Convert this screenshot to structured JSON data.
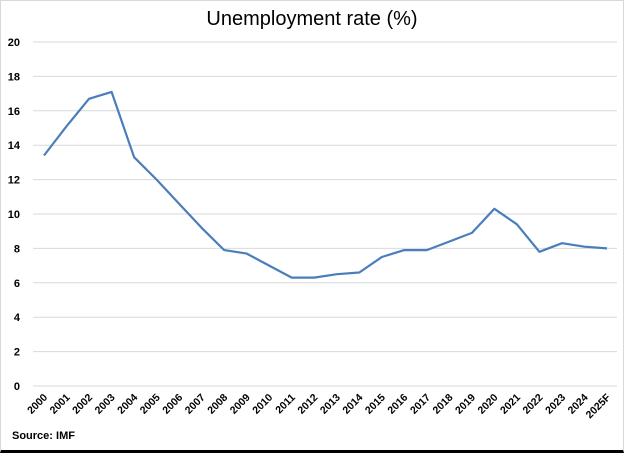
{
  "chart_data": {
    "type": "line",
    "title": "Unemployment rate (%)",
    "xlabel": "",
    "ylabel": "",
    "ylim": [
      0,
      20
    ],
    "yticks": [
      0,
      2,
      4,
      6,
      8,
      10,
      12,
      14,
      16,
      18,
      20
    ],
    "grid": true,
    "legend": null,
    "categories": [
      "2000",
      "2001",
      "2002",
      "2003",
      "2004",
      "2005",
      "2006",
      "2007",
      "2008",
      "2009",
      "2010",
      "2011",
      "2012",
      "2013",
      "2014",
      "2015",
      "2016",
      "2017",
      "2018",
      "2019",
      "2020",
      "2021",
      "2022",
      "2023",
      "2024",
      "2025F"
    ],
    "series": [
      {
        "name": "Unemployment rate",
        "color": "#4a7ebb",
        "values": [
          13.4,
          15.1,
          16.7,
          17.1,
          13.3,
          12.0,
          10.6,
          9.2,
          7.9,
          7.7,
          7.0,
          6.3,
          6.3,
          6.5,
          6.6,
          7.5,
          7.9,
          7.9,
          8.4,
          8.9,
          10.3,
          9.4,
          7.8,
          8.3,
          8.1,
          8.0
        ]
      }
    ],
    "annotations": [
      "Source: IMF"
    ]
  },
  "header": {
    "title": "Unemployment rate (%)"
  },
  "footer": {
    "source": "Source: IMF"
  },
  "colors": {
    "line": "#4a7ebb",
    "grid": "#d9d9d9"
  }
}
